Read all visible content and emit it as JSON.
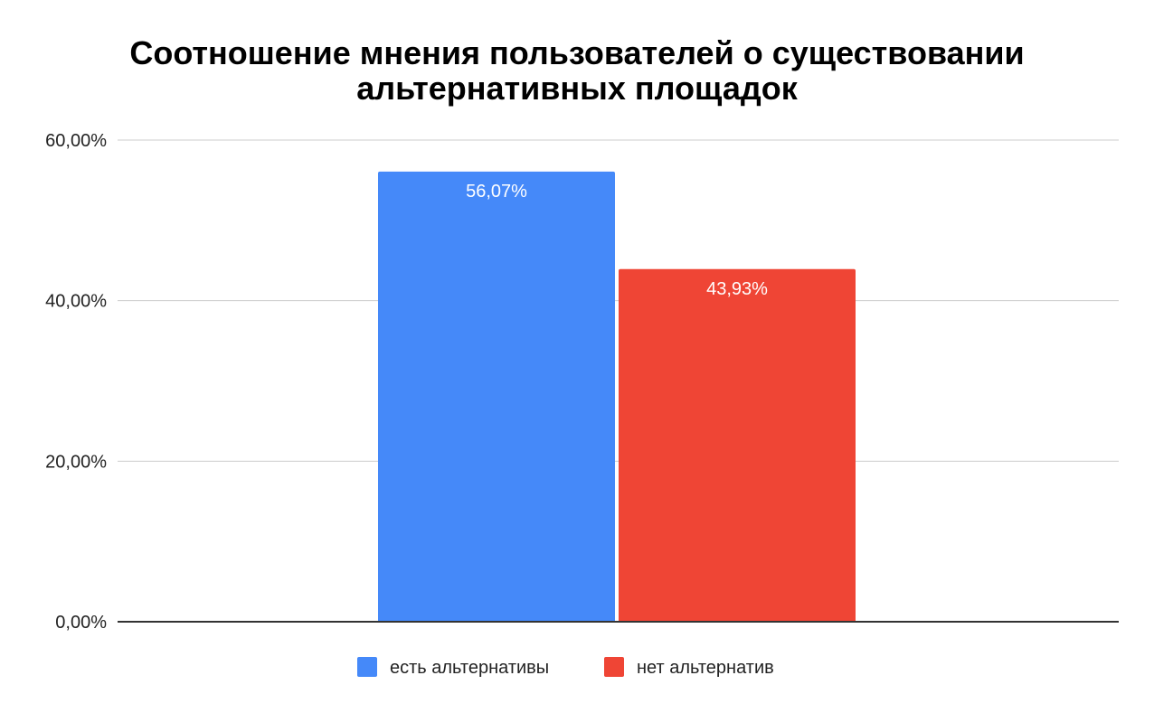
{
  "chart_data": {
    "type": "bar",
    "title_lines": [
      "Соотношение мнения пользователей о существовании",
      "альтернативных площадок"
    ],
    "y_ticks": [
      "0,00%",
      "20,00%",
      "40,00%",
      "60,00%"
    ],
    "ylim": [
      0,
      60
    ],
    "grid": true,
    "legend_position": "bottom",
    "series": [
      {
        "name": "есть альтернативы",
        "value": 56.07,
        "label": "56,07%",
        "color": "#4589f9"
      },
      {
        "name": "нет альтернатив",
        "value": 43.93,
        "label": "43,93%",
        "color": "#ef4535"
      }
    ]
  }
}
